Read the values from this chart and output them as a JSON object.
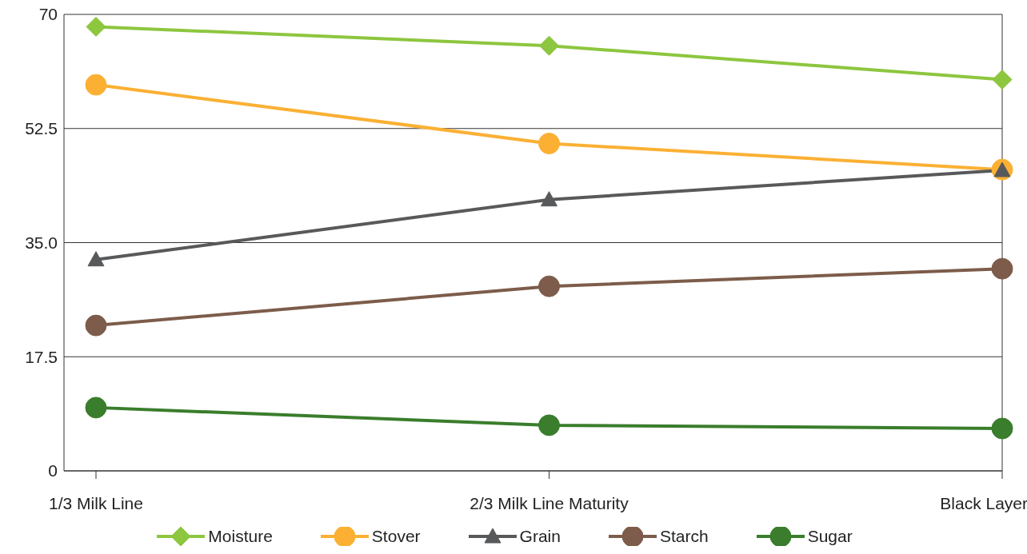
{
  "chart_data": {
    "type": "line",
    "categories": [
      "1/3 Milk Line",
      "2/3 Milk Line Maturity",
      "Black Layer"
    ],
    "series": [
      {
        "name": "Moisture",
        "color": "#8dc63f",
        "marker": "diamond",
        "values": [
          68.1,
          65.2,
          60.0
        ]
      },
      {
        "name": "Stover",
        "color": "#fbb034",
        "marker": "circle",
        "values": [
          59.2,
          50.2,
          46.2
        ]
      },
      {
        "name": "Grain",
        "color": "#58595b",
        "marker": "triangle",
        "values": [
          32.4,
          41.6,
          46.1
        ]
      },
      {
        "name": "Starch",
        "color": "#7d5c4b",
        "marker": "circle",
        "values": [
          22.3,
          28.3,
          31.0
        ]
      },
      {
        "name": "Sugar",
        "color": "#3a7d2c",
        "marker": "circle",
        "values": [
          9.7,
          7.0,
          6.5
        ]
      }
    ],
    "ylim": [
      0,
      70
    ],
    "yticks": [
      0,
      17.5,
      {
        "value": 35,
        "label": "35.0"
      },
      52.5,
      70
    ],
    "grid": "y",
    "legend": "bottom",
    "line_style": "solid"
  }
}
